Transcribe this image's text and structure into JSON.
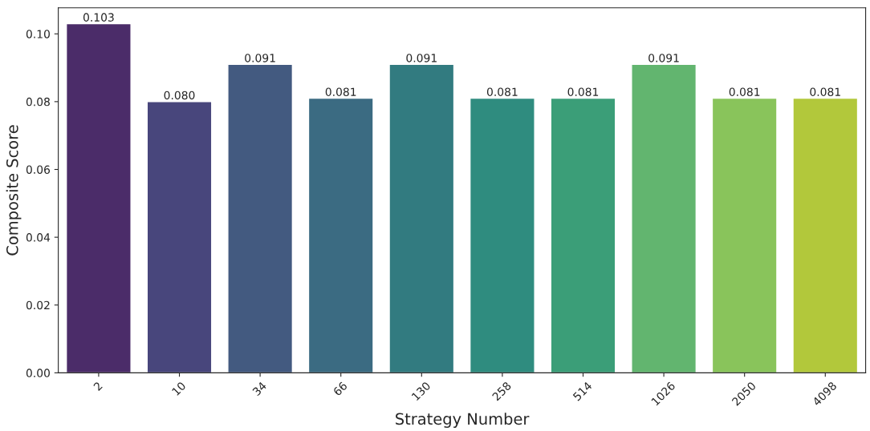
{
  "chart_data": {
    "type": "bar",
    "xlabel": "Strategy Number",
    "ylabel": "Composite Score",
    "categories": [
      "2",
      "10",
      "34",
      "66",
      "130",
      "258",
      "514",
      "1026",
      "2050",
      "4098"
    ],
    "values": [
      0.103,
      0.08,
      0.091,
      0.081,
      0.091,
      0.081,
      0.081,
      0.091,
      0.081,
      0.081
    ],
    "colors": [
      "#4b2c69",
      "#48467c",
      "#435a80",
      "#3b6b82",
      "#327b80",
      "#2f8c7f",
      "#3b9e78",
      "#62b56f",
      "#89c45b",
      "#b2c83b"
    ],
    "ylim": [
      0,
      0.1077
    ],
    "yticks": [
      {
        "value": 0,
        "label": "0.00"
      },
      {
        "value": 0.02,
        "label": "0.02"
      },
      {
        "value": 0.04,
        "label": "0.04"
      },
      {
        "value": 0.06,
        "label": "0.06"
      },
      {
        "value": 0.08,
        "label": "0.08"
      },
      {
        "value": 0.1,
        "label": "0.10"
      }
    ],
    "value_labels": [
      "0.103",
      "0.080",
      "0.091",
      "0.081",
      "0.091",
      "0.081",
      "0.081",
      "0.091",
      "0.081",
      "0.081"
    ],
    "grid": false
  }
}
